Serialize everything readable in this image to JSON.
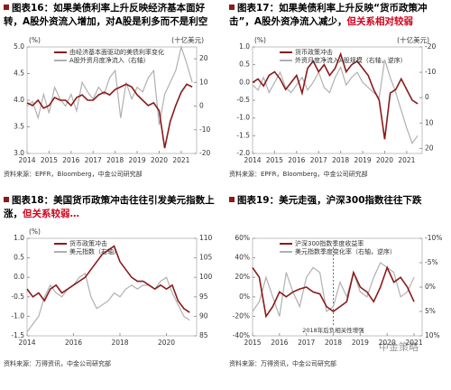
{
  "chart_data": [
    {
      "type": "line",
      "figure": "图表16：",
      "title": "如果美债利率上升反映经济基本面好转，A股外资流入增加，对A股是利多而不是利空",
      "source": "资料来源：EPFR，Bloomberg，中金公司研究部",
      "y_unit": "(%)",
      "y2_unit": "(十亿美元)",
      "x": [
        2014,
        2014.25,
        2014.5,
        2014.75,
        2015,
        2015.25,
        2015.5,
        2015.75,
        2016,
        2016.25,
        2016.5,
        2016.75,
        2017,
        2017.25,
        2017.5,
        2017.75,
        2018,
        2018.25,
        2018.5,
        2018.75,
        2019,
        2019.25,
        2019.5,
        2019.75,
        2020,
        2020.25,
        2020.5,
        2020.75,
        2021,
        2021.25,
        2021.5
      ],
      "xlim": [
        2014,
        2021.7
      ],
      "xticks": [
        2014,
        2015,
        2016,
        2017,
        2018,
        2019,
        2020,
        2021
      ],
      "ylim": [
        3.0,
        5.0
      ],
      "yticks": [
        {
          "value": 3.0,
          "label": "3.0"
        },
        {
          "value": 3.5,
          "label": "3.5"
        },
        {
          "value": 4.0,
          "label": "4.0"
        },
        {
          "value": 4.5,
          "label": "4.5"
        },
        {
          "value": 5.0,
          "label": "5.0"
        }
      ],
      "y2lim": [
        -20,
        25
      ],
      "y2ticks": [
        -20,
        -10,
        0,
        10,
        20
      ],
      "series": [
        {
          "name": "由经济基本面驱动的美债利率变化",
          "color": "#8b1a1a",
          "values": [
            3.95,
            3.9,
            4.0,
            3.85,
            3.9,
            4.05,
            4.0,
            4.0,
            3.9,
            4.05,
            4.1,
            4.0,
            4.0,
            4.1,
            4.15,
            4.1,
            4.2,
            4.25,
            4.3,
            4.25,
            4.1,
            4.0,
            3.9,
            3.95,
            3.8,
            3.1,
            3.6,
            3.9,
            4.15,
            4.3,
            4.25
          ]
        },
        {
          "name": "A股外资月度净流入（右轴）",
          "color": "#b0b0b0",
          "axis": "y2",
          "values": [
            0,
            2,
            -5,
            5,
            -3,
            8,
            3,
            0,
            5,
            -2,
            10,
            6,
            3,
            8,
            5,
            12,
            15,
            -5,
            10,
            3,
            8,
            6,
            12,
            15,
            -8,
            5,
            10,
            15,
            25,
            18,
            10
          ]
        }
      ]
    },
    {
      "type": "line",
      "figure": "图表17：",
      "title": "如果美债利率上升反映“货币政策冲击”，A股外资净流入减少，",
      "title_highlight": "但关系相对较弱",
      "source": "资料来源：EPFR，Bloomberg，中金公司研究部",
      "y_unit": "(%)",
      "y2_unit": "(十亿美元)",
      "x": [
        2014,
        2014.25,
        2014.5,
        2014.75,
        2015,
        2015.25,
        2015.5,
        2015.75,
        2016,
        2016.25,
        2016.5,
        2016.75,
        2017,
        2017.25,
        2017.5,
        2017.75,
        2018,
        2018.25,
        2018.5,
        2018.75,
        2019,
        2019.25,
        2019.5,
        2019.75,
        2020,
        2020.25,
        2020.5,
        2020.75,
        2021,
        2021.25,
        2021.5
      ],
      "xlim": [
        2014,
        2021.7
      ],
      "xticks": [
        2014,
        2015,
        2016,
        2017,
        2018,
        2019,
        2020,
        2021
      ],
      "ylim": [
        -2.0,
        1.0
      ],
      "yticks": [
        {
          "value": -2.0,
          "label": "-2.0"
        },
        {
          "value": -1.5,
          "label": "-1.5"
        },
        {
          "value": -1.0,
          "label": "-1.0"
        },
        {
          "value": -0.5,
          "label": "-0.5"
        },
        {
          "value": 0.0,
          "label": "0.0"
        },
        {
          "value": 0.5,
          "label": "0.5"
        },
        {
          "value": 1.0,
          "label": "1.0"
        }
      ],
      "y2lim": [
        22,
        -20
      ],
      "y2ticks": [
        -20,
        -10,
        0,
        10,
        20
      ],
      "series": [
        {
          "name": "货币政策冲击",
          "color": "#8b1a1a",
          "values": [
            0,
            0.1,
            -0.1,
            0.2,
            0.3,
            0.1,
            -0.2,
            0.0,
            0.2,
            -0.3,
            0.4,
            0.6,
            0.3,
            0.5,
            0.2,
            0.4,
            0.8,
            0.3,
            0.5,
            0.6,
            0.4,
            0.2,
            -0.2,
            -0.5,
            -1.6,
            -0.3,
            -0.2,
            0.1,
            -0.2,
            -0.5,
            -0.6
          ]
        },
        {
          "name": "外资月度净流入A股规模（右轴，逆序）",
          "color": "#b0b0b0",
          "axis": "y2",
          "values": [
            -5,
            -3,
            -8,
            -2,
            -6,
            -10,
            -4,
            -2,
            -5,
            -8,
            -3,
            -6,
            -10,
            -4,
            -2,
            -8,
            -12,
            -5,
            -8,
            -10,
            -6,
            -4,
            -2,
            0,
            -15,
            -8,
            -2,
            5,
            12,
            18,
            15
          ]
        }
      ]
    },
    {
      "type": "line",
      "figure": "图表18：",
      "title": "美国货币政策冲击往往引发美元指数上涨，",
      "title_highlight": "但关系较弱…",
      "source": "资料来源：万得资讯，中金公司研究部",
      "y_unit": "(%)",
      "x": [
        2014,
        2014.25,
        2014.5,
        2014.75,
        2015,
        2015.25,
        2015.5,
        2015.75,
        2016,
        2016.25,
        2016.5,
        2016.75,
        2017,
        2017.25,
        2017.5,
        2017.75,
        2018,
        2018.25,
        2018.5,
        2018.75,
        2019,
        2019.25,
        2019.5,
        2019.75,
        2020,
        2020.25,
        2020.5,
        2020.75,
        2021
      ],
      "xlim": [
        2014,
        2021.3
      ],
      "xticks": [
        2014,
        2016,
        2018,
        2020
      ],
      "ylim": [
        -1.5,
        1.0
      ],
      "yticks": [
        {
          "value": -1.5,
          "label": "-1.5"
        },
        {
          "value": -1.0,
          "label": "-1.0"
        },
        {
          "value": -0.5,
          "label": "-0.5"
        },
        {
          "value": 0.0,
          "label": "0.0"
        },
        {
          "value": 0.5,
          "label": "0.5"
        },
        {
          "value": 1.0,
          "label": "1.0"
        }
      ],
      "y2lim": [
        85,
        110
      ],
      "y2ticks": [
        85,
        90,
        95,
        100,
        105,
        110
      ],
      "series": [
        {
          "name": "货币政策冲击",
          "color": "#8b1a1a",
          "values": [
            -0.3,
            -0.5,
            -0.4,
            -0.6,
            -0.3,
            -0.2,
            -0.4,
            -0.3,
            -0.2,
            -0.1,
            0.0,
            0.2,
            0.4,
            0.6,
            0.7,
            0.8,
            0.4,
            0.2,
            0.0,
            -0.1,
            -0.1,
            -0.2,
            -0.3,
            -0.2,
            -0.3,
            -0.2,
            -0.6,
            -0.8,
            -0.9
          ]
        },
        {
          "name": "美元指数（右轴）",
          "color": "#b0b0b0",
          "axis": "y2",
          "values": [
            86,
            88,
            90,
            95,
            98,
            96,
            95,
            97,
            98,
            100,
            101,
            95,
            92,
            93,
            94,
            96,
            95,
            97,
            98,
            97,
            98,
            98,
            97,
            99,
            100,
            96,
            93,
            90,
            89
          ]
        }
      ]
    },
    {
      "type": "line",
      "figure": "图表19：",
      "title": "美元走强，沪深300指数往往下跌",
      "source": "资料来源：万得资讯，中金公司研究部",
      "annotation": "2018年后负相关性增强",
      "annotation_x": 2018,
      "x": [
        2015,
        2015.25,
        2015.5,
        2015.75,
        2016,
        2016.25,
        2016.5,
        2016.75,
        2017,
        2017.25,
        2017.5,
        2017.75,
        2018,
        2018.25,
        2018.5,
        2018.75,
        2019,
        2019.25,
        2019.5,
        2019.75,
        2020,
        2020.25,
        2020.5,
        2020.75,
        2021
      ],
      "xlim": [
        2015,
        2021.3
      ],
      "xticks": [
        2015,
        2016,
        2017,
        2018,
        2019,
        2020,
        2021
      ],
      "ylim": [
        -40,
        60
      ],
      "yticks": [
        {
          "value": -40,
          "label": "-40%"
        },
        {
          "value": -20,
          "label": "-20%"
        },
        {
          "value": 0,
          "label": "0%"
        },
        {
          "value": 20,
          "label": "20%"
        },
        {
          "value": 40,
          "label": "40%"
        },
        {
          "value": 60,
          "label": "60%"
        }
      ],
      "y2lim": [
        10,
        -10
      ],
      "y2ticks": [
        {
          "value": -10,
          "label": "-10%"
        },
        {
          "value": -5,
          "label": "-5%"
        },
        {
          "value": 0,
          "label": "0%"
        },
        {
          "value": 5,
          "label": "5%"
        },
        {
          "value": 10,
          "label": "10%"
        }
      ],
      "series": [
        {
          "name": "沪深300指数季度收益率",
          "color": "#8b1a1a",
          "values": [
            30,
            20,
            -20,
            -10,
            5,
            0,
            5,
            8,
            10,
            5,
            3,
            -10,
            -15,
            -10,
            -5,
            25,
            10,
            5,
            -5,
            10,
            30,
            15,
            20,
            10,
            -5
          ]
        },
        {
          "name": "美元指数季度变化率（右轴，逆序）",
          "color": "#b0b0b0",
          "axis": "y2",
          "values": [
            5,
            3,
            -2,
            2,
            6,
            -3,
            1,
            4,
            -2,
            -4,
            -3,
            5,
            4,
            -1,
            2,
            -3,
            1,
            2,
            -2,
            -5,
            -4,
            -3,
            2,
            1,
            -2
          ]
        }
      ]
    }
  ],
  "watermark": "中金策略"
}
